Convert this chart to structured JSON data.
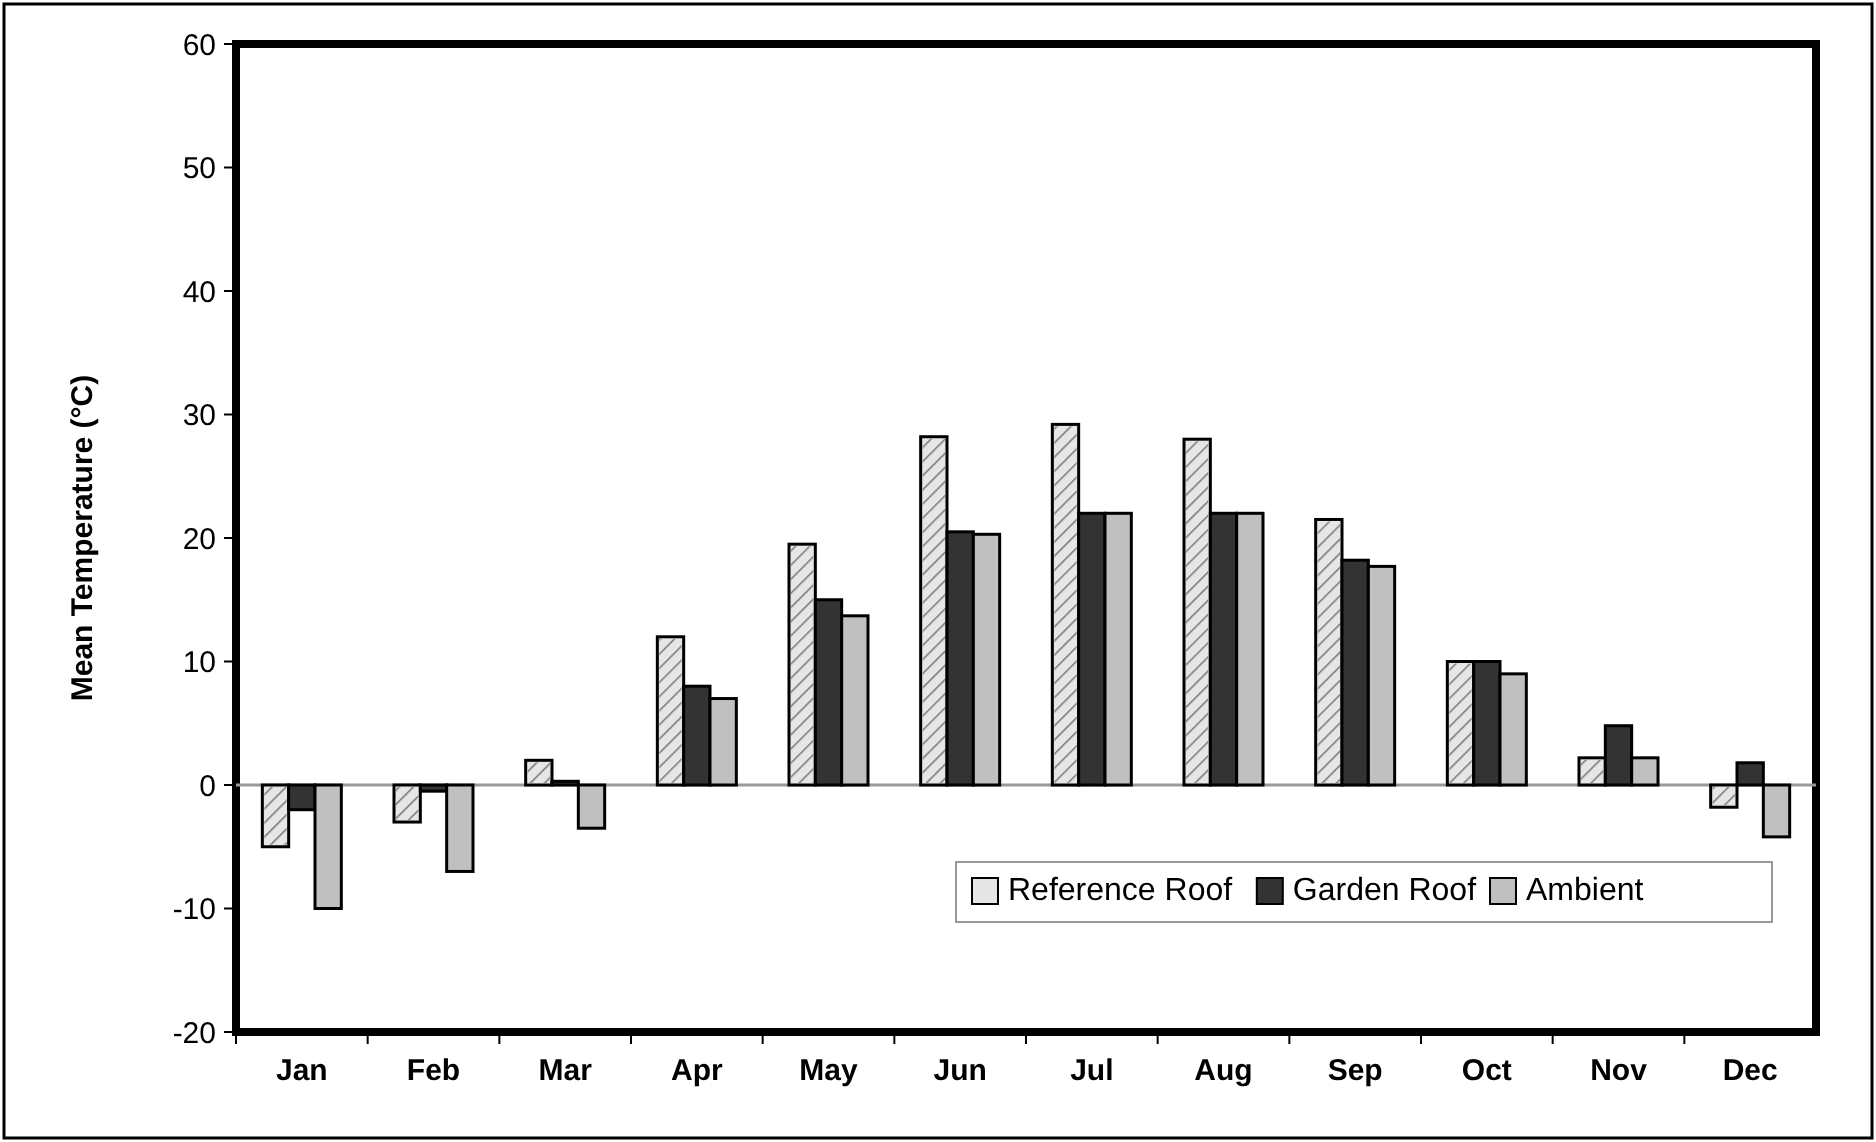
{
  "chart_data": {
    "type": "bar",
    "ylabel": "Mean Temperature (°C)",
    "categories": [
      "Jan",
      "Feb",
      "Mar",
      "Apr",
      "May",
      "Jun",
      "Jul",
      "Aug",
      "Sep",
      "Oct",
      "Nov",
      "Dec"
    ],
    "series": [
      {
        "name": "Reference Roof",
        "color": "#e6e6e6",
        "values": [
          -5,
          -3,
          2,
          12,
          19.5,
          28.2,
          29.2,
          28,
          21.5,
          10,
          2.2,
          -1.8
        ]
      },
      {
        "name": "Garden Roof",
        "color": "#333333",
        "values": [
          -2,
          -0.5,
          0.3,
          8,
          15,
          20.5,
          22,
          22,
          18.2,
          10,
          4.8,
          1.8
        ]
      },
      {
        "name": "Ambient",
        "color": "#c0c0c0",
        "values": [
          -10,
          -7,
          -3.5,
          7,
          13.7,
          20.3,
          22,
          22,
          17.7,
          9,
          2.2,
          -4.2
        ]
      }
    ],
    "ylim": [
      -20,
      60
    ],
    "yticks": [
      -20,
      -10,
      0,
      10,
      20,
      30,
      40,
      50,
      60
    ],
    "legend": "bottom right"
  }
}
